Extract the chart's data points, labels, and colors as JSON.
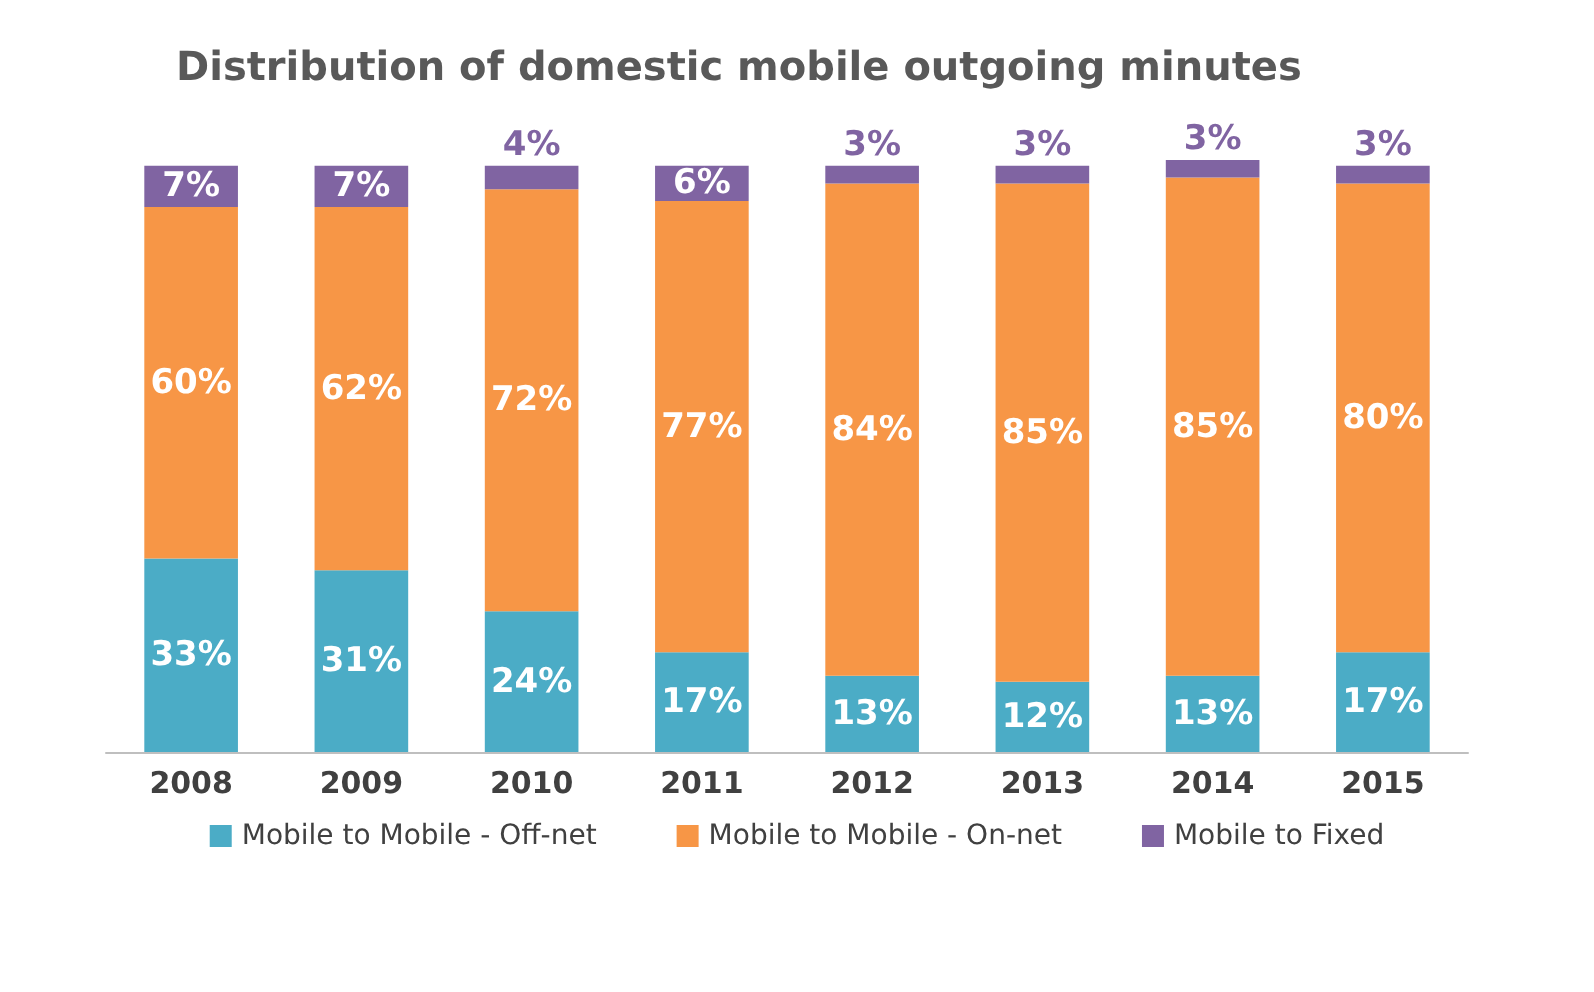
{
  "chart_data": {
    "type": "bar",
    "stacked": true,
    "title": "Distribution of domestic mobile outgoing minutes",
    "categories": [
      "2008",
      "2009",
      "2010",
      "2011",
      "2012",
      "2013",
      "2014",
      "2015"
    ],
    "series": [
      {
        "name": "Mobile to Mobile - Off-net",
        "color": "#4bacc6",
        "values": [
          33,
          31,
          24,
          17,
          13,
          12,
          13,
          17
        ],
        "value_labels": [
          "33%",
          "31%",
          "24%",
          "17%",
          "13%",
          "12%",
          "13%",
          "17%"
        ]
      },
      {
        "name": "Mobile to Mobile - On-net",
        "color": "#f79646",
        "values": [
          60,
          62,
          72,
          77,
          84,
          85,
          85,
          80
        ],
        "value_labels": [
          "60%",
          "62%",
          "72%",
          "77%",
          "84%",
          "85%",
          "85%",
          "80%"
        ]
      },
      {
        "name": "Mobile to Fixed",
        "color": "#8064a2",
        "values": [
          7,
          7,
          4,
          6,
          3,
          3,
          3,
          3
        ],
        "value_labels": [
          "7%",
          "7%",
          "4%",
          "6%",
          "3%",
          "3%",
          "3%",
          "3%"
        ]
      }
    ],
    "legend": "bottom"
  }
}
